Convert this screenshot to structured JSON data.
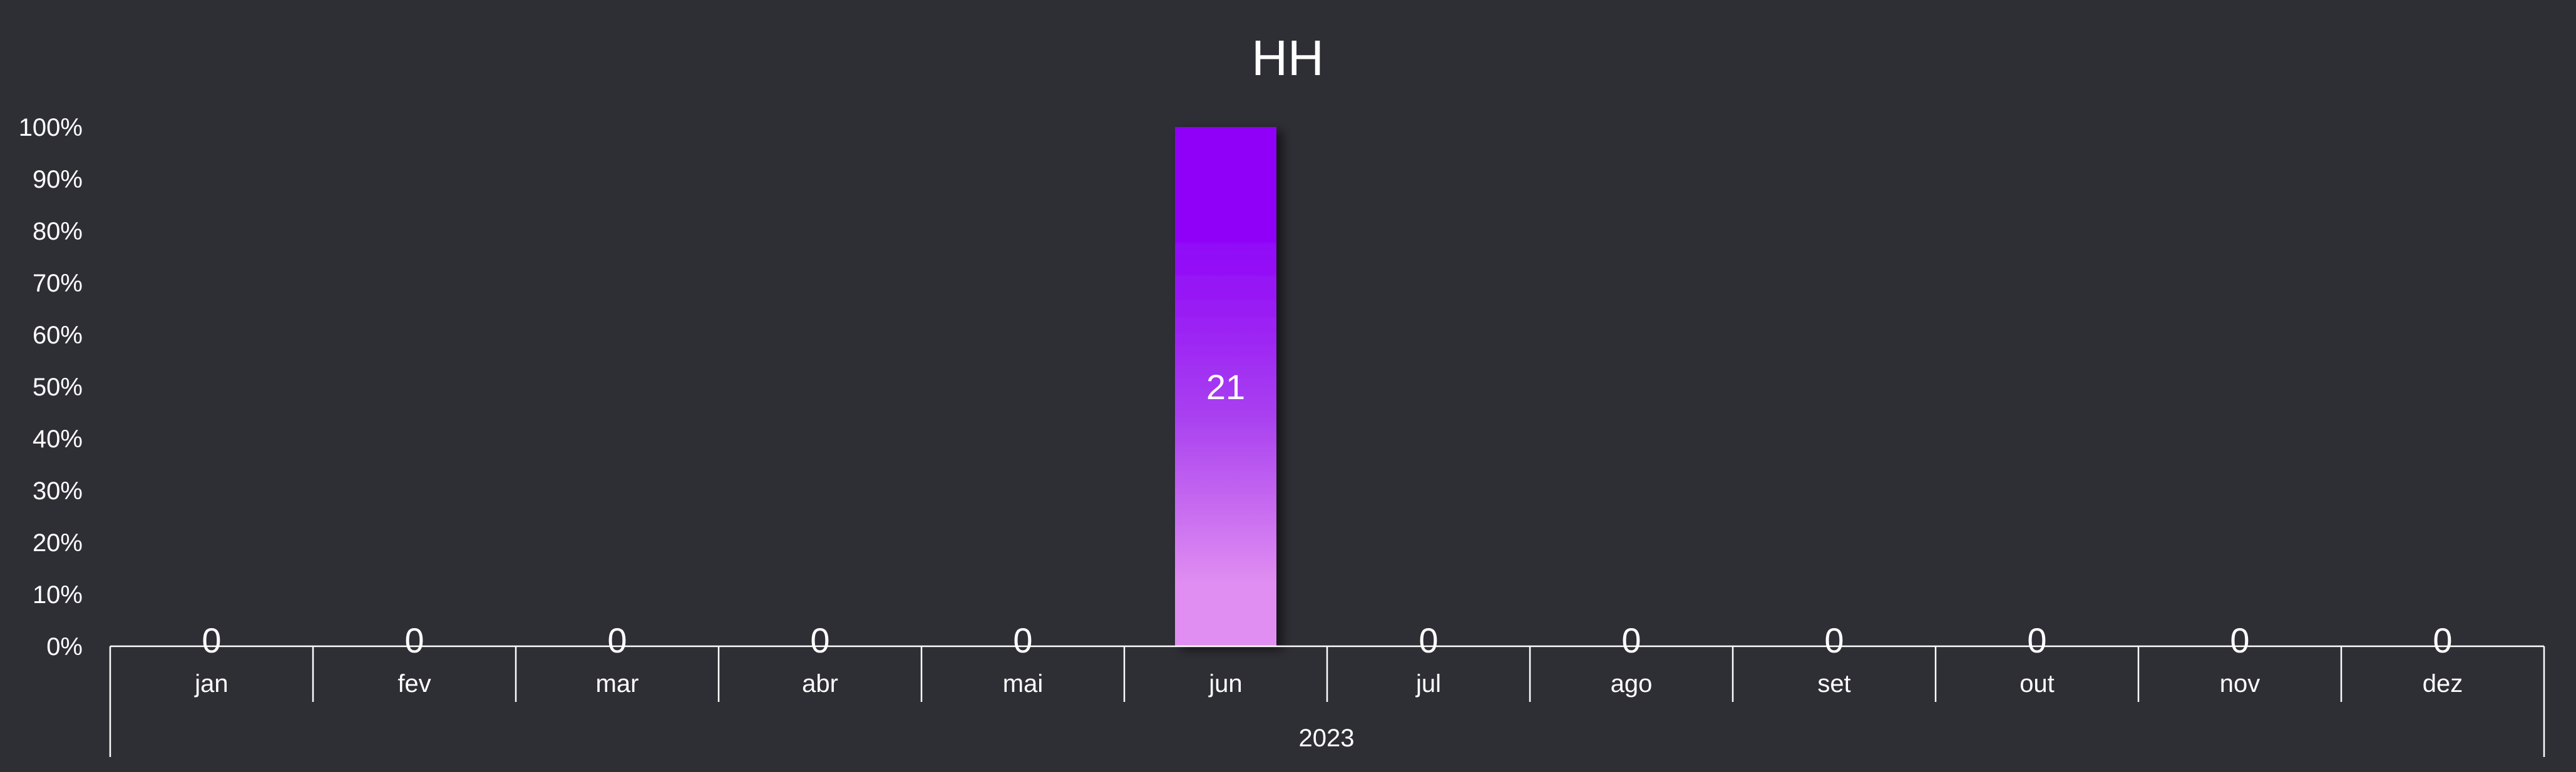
{
  "chart_data": {
    "type": "bar",
    "title": "HH",
    "categories": [
      "jan",
      "fev",
      "mar",
      "abr",
      "mai",
      "jun",
      "jul",
      "ago",
      "set",
      "out",
      "nov",
      "dez"
    ],
    "group_label": "2023",
    "values": [
      0,
      0,
      0,
      0,
      0,
      21,
      0,
      0,
      0,
      0,
      0,
      0
    ],
    "percent_values": [
      0,
      0,
      0,
      0,
      0,
      100,
      0,
      0,
      0,
      0,
      0,
      0
    ],
    "data_labels": [
      "0",
      "0",
      "0",
      "0",
      "0",
      "21",
      "0",
      "0",
      "0",
      "0",
      "0",
      "0"
    ],
    "y_ticks": [
      "0%",
      "10%",
      "20%",
      "30%",
      "40%",
      "50%",
      "60%",
      "70%",
      "80%",
      "90%",
      "100%"
    ],
    "ylim": [
      0,
      100
    ],
    "grid": false,
    "colors": {
      "background": "#2e2e35",
      "bar_top": "#9006f8",
      "bar_mid": "#a83ff0",
      "bar_bottom": "#e08ef1",
      "text": "#ffffff"
    }
  }
}
